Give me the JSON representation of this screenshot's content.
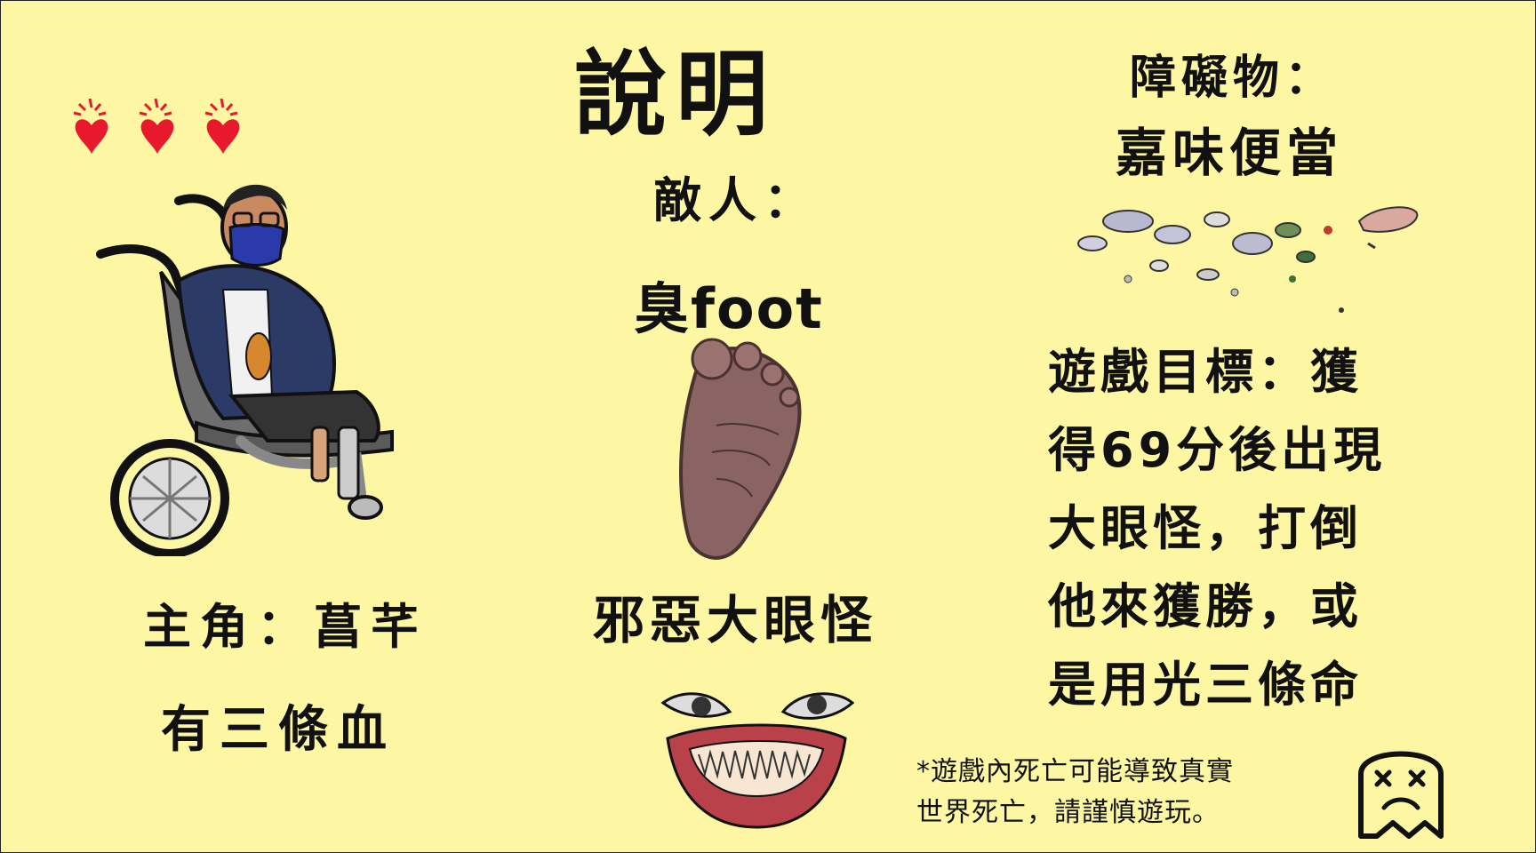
{
  "screen_title": "說明",
  "enemy": {
    "label": "敵人：",
    "foot_name": "臭foot",
    "boss_name": "邪惡大眼怪"
  },
  "protagonist": {
    "label": "主角：菖芊",
    "lives_text": "有三條血",
    "lives": 3
  },
  "obstacle": {
    "label": "障礙物：",
    "name": "嘉味便當"
  },
  "goal": {
    "lines": [
      "遊戲目標：獲",
      "得69分後出現",
      "大眼怪，打倒",
      "他來獲勝，或",
      "是用光三條命"
    ]
  },
  "warning": {
    "lines": [
      "*遊戲內死亡可能導致真實",
      "世界死亡，請謹慎遊玩。"
    ]
  },
  "colors": {
    "background": "#fdf6a3",
    "heart": "#e8192c",
    "text": "#111111"
  },
  "icons": [
    "heart-icon",
    "ghost-dead-icon"
  ]
}
